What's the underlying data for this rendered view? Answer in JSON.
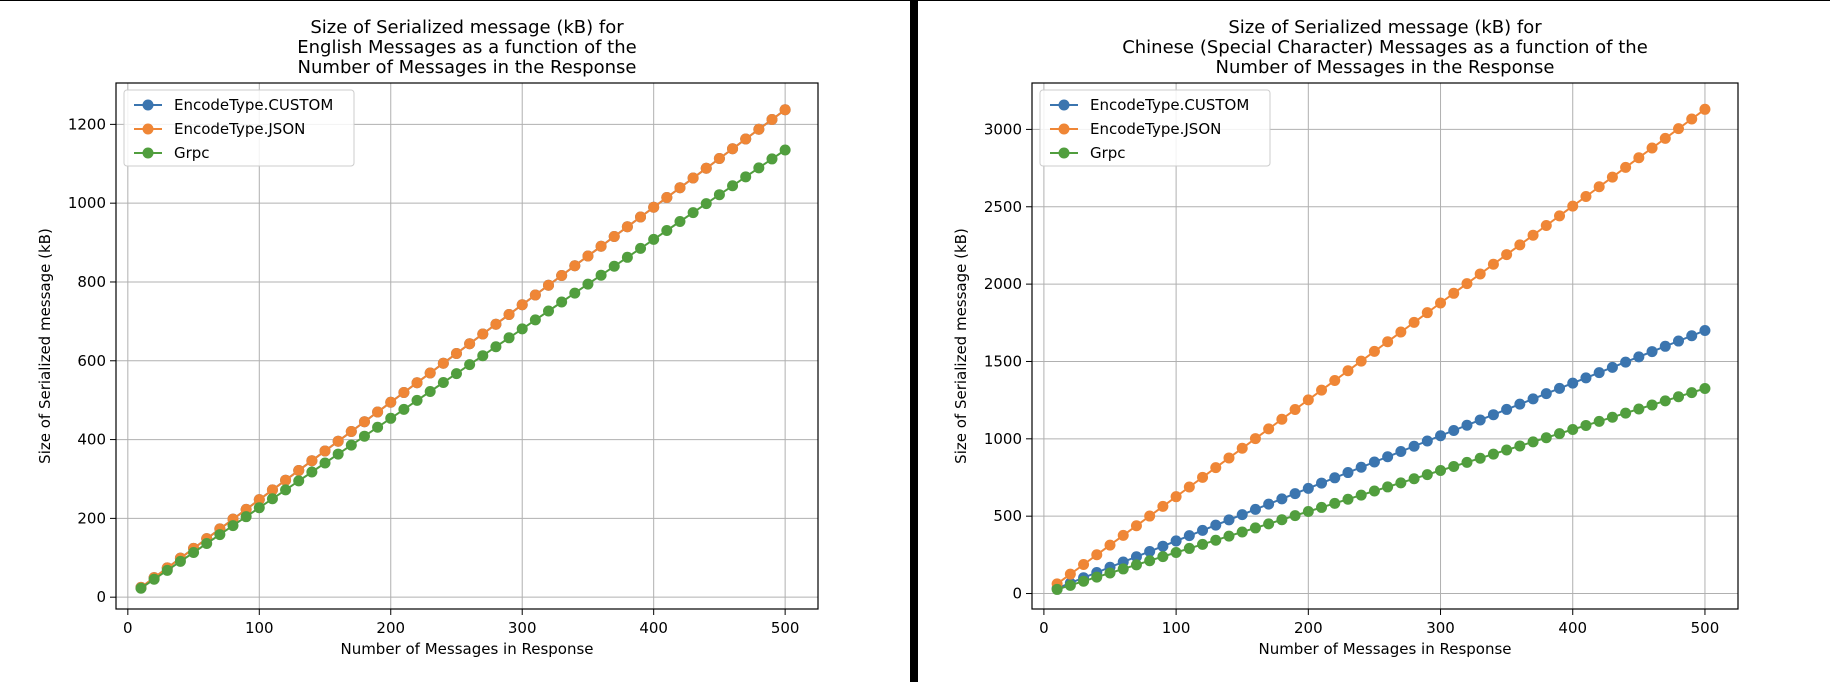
{
  "colors": {
    "custom": "#3b75af",
    "json": "#ef8636",
    "grpc": "#519e3e",
    "grid": "#b0b0b0",
    "divider": "#000000"
  },
  "chart_data": [
    {
      "type": "line",
      "title_lines": [
        "Size of Serialized message (kB) for",
        "English Messages as a function of the",
        "Number of Messages in the Response"
      ],
      "xlabel": "Number of Messages in Response",
      "ylabel": "Size of Serialized message (kB)",
      "xlim": [
        -9,
        525
      ],
      "ylim": [
        -30,
        1305
      ],
      "xticks": [
        0,
        100,
        200,
        300,
        400,
        500
      ],
      "yticks": [
        0,
        200,
        400,
        600,
        800,
        1000,
        1200
      ],
      "grid": true,
      "legend_position": "top-left",
      "x_range": {
        "start": 10,
        "end": 500,
        "step": 10
      },
      "series": [
        {
          "name": "EncodeType.CUSTOM",
          "color_key": "custom",
          "start": 24.8,
          "end": 1237
        },
        {
          "name": "EncodeType.JSON",
          "color_key": "json",
          "start": 24.8,
          "end": 1237
        },
        {
          "name": "Grpc",
          "color_key": "grpc",
          "start": 22.7,
          "end": 1135
        }
      ]
    },
    {
      "type": "line",
      "title_lines": [
        "Size of Serialized message (kB) for",
        "Chinese (Special Character) Messages as a function of the",
        "Number of Messages in the Response"
      ],
      "xlabel": "Number of Messages in Response",
      "ylabel": "Size of Serialized message (kB)",
      "xlim": [
        -9,
        525
      ],
      "ylim": [
        -100,
        3300
      ],
      "xticks": [
        0,
        100,
        200,
        300,
        400,
        500
      ],
      "yticks": [
        0,
        500,
        1000,
        1500,
        2000,
        2500,
        3000
      ],
      "grid": true,
      "legend_position": "top-left",
      "x_range": {
        "start": 10,
        "end": 500,
        "step": 10
      },
      "series": [
        {
          "name": "EncodeType.CUSTOM",
          "color_key": "custom",
          "start": 34,
          "end": 1700
        },
        {
          "name": "EncodeType.JSON",
          "color_key": "json",
          "start": 62.6,
          "end": 3130
        },
        {
          "name": "Grpc",
          "color_key": "grpc",
          "start": 26.5,
          "end": 1325
        }
      ]
    }
  ]
}
